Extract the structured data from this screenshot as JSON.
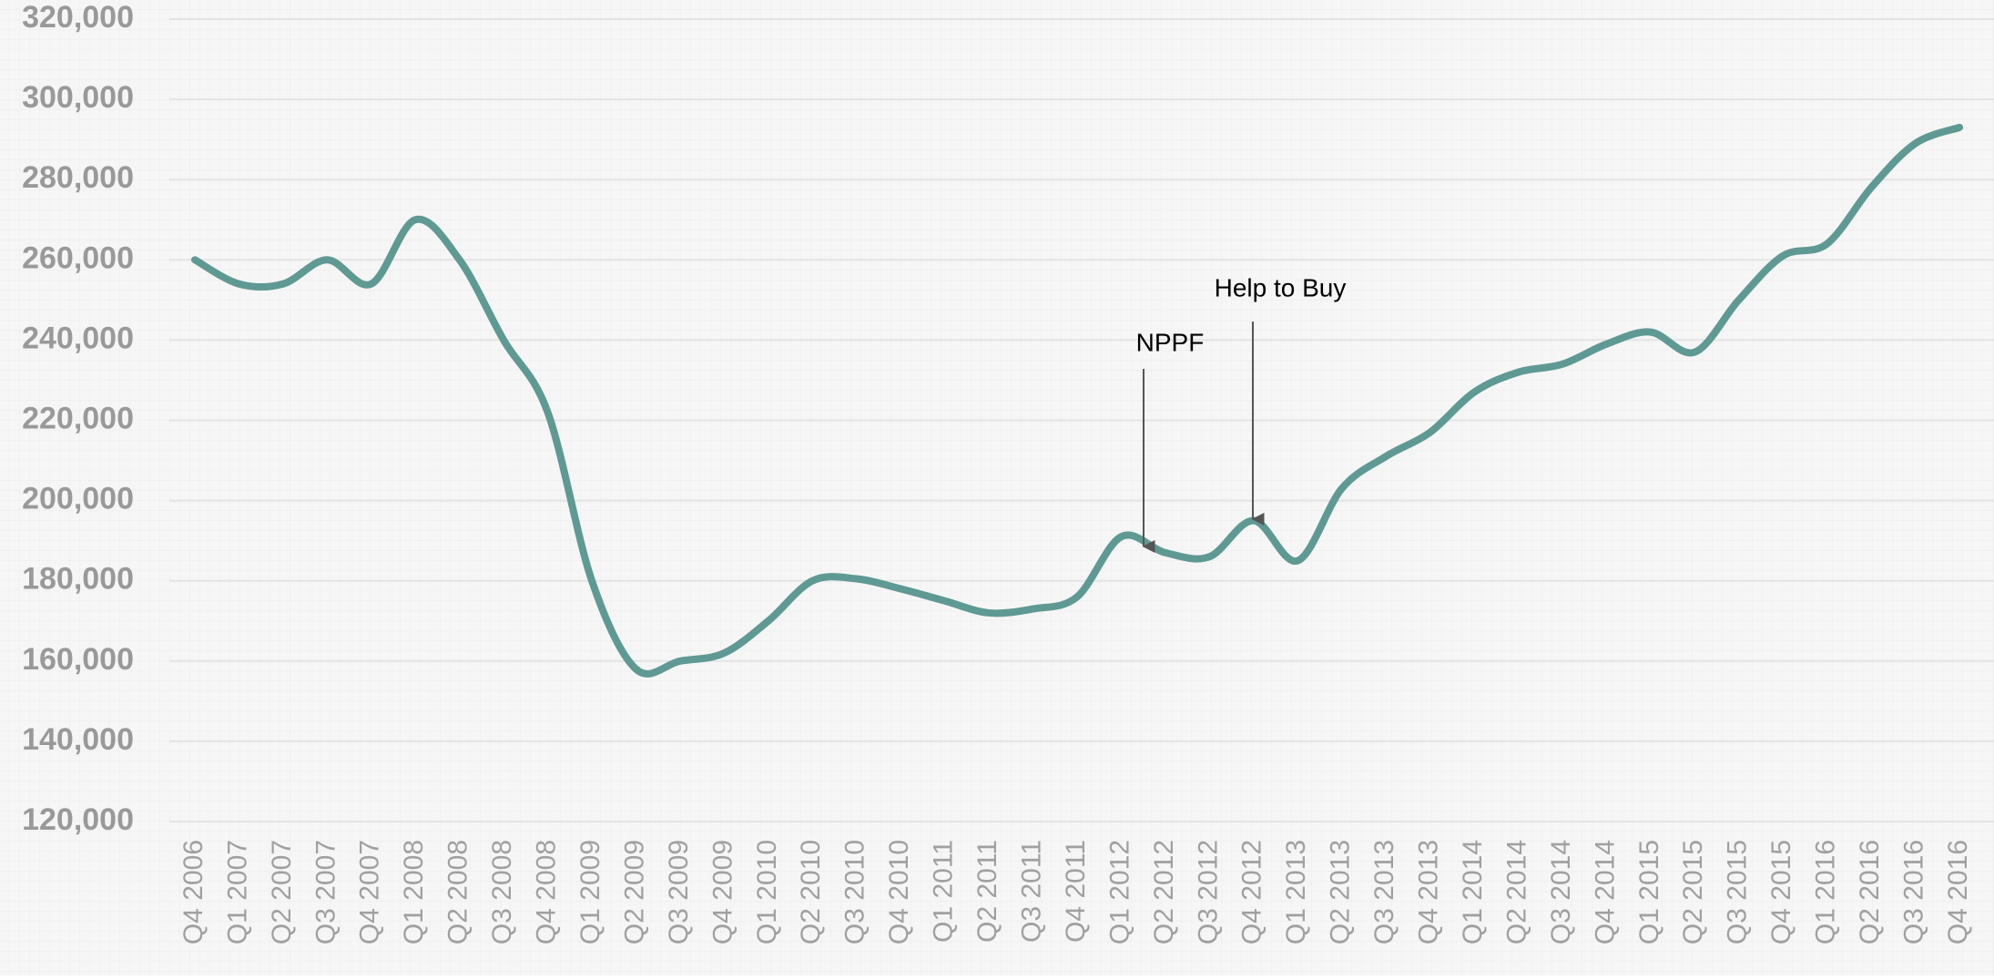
{
  "chart_data": {
    "type": "line",
    "categories": [
      "Q4 2006",
      "Q1 2007",
      "Q2 2007",
      "Q3 2007",
      "Q4 2007",
      "Q1 2008",
      "Q2 2008",
      "Q3 2008",
      "Q4 2008",
      "Q1 2009",
      "Q2 2009",
      "Q3 2009",
      "Q4 2009",
      "Q1 2010",
      "Q2 2010",
      "Q3 2010",
      "Q4 2010",
      "Q1 2011",
      "Q2 2011",
      "Q3 2011",
      "Q4 2011",
      "Q1 2012",
      "Q2 2012",
      "Q3 2012",
      "Q4 2012",
      "Q1 2013",
      "Q2 2013",
      "Q3 2013",
      "Q4 2013",
      "Q1 2014",
      "Q2 2014",
      "Q3 2014",
      "Q4 2014",
      "Q1 2015",
      "Q2 2015",
      "Q3 2015",
      "Q4 2015",
      "Q1 2016",
      "Q2 2016",
      "Q3 2016",
      "Q4 2016"
    ],
    "values": [
      260000,
      254000,
      254000,
      260000,
      254000,
      270000,
      260000,
      240000,
      222000,
      180000,
      158000,
      160000,
      162000,
      170000,
      180000,
      180500,
      178000,
      175000,
      172000,
      173000,
      176000,
      191000,
      187000,
      186000,
      195000,
      185000,
      203000,
      211000,
      217000,
      227000,
      232000,
      234000,
      239000,
      242000,
      237000,
      250000,
      261000,
      264000,
      278000,
      289000,
      293000
    ],
    "color": "#5f9993",
    "ylim": [
      120000,
      320000
    ],
    "yticks": [
      {
        "value": 120000,
        "label": "120,000"
      },
      {
        "value": 140000,
        "label": "140,000"
      },
      {
        "value": 160000,
        "label": "160,000"
      },
      {
        "value": 180000,
        "label": "180,000"
      },
      {
        "value": 200000,
        "label": "200,000"
      },
      {
        "value": 220000,
        "label": "220,000"
      },
      {
        "value": 240000,
        "label": "240,000"
      },
      {
        "value": 260000,
        "label": "260,000"
      },
      {
        "value": 280000,
        "label": "280,000"
      },
      {
        "value": 300000,
        "label": "300,000"
      },
      {
        "value": 320000,
        "label": "320,000"
      }
    ],
    "grid": true,
    "annotations": [
      "NPPF",
      "Help to Buy"
    ]
  }
}
